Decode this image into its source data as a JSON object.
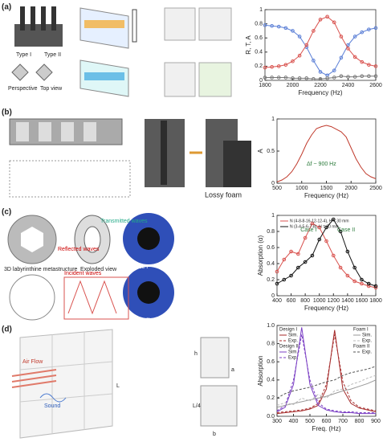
{
  "figure": {
    "panel_labels": [
      "(a)",
      "(b)",
      "(c)",
      "(d)"
    ],
    "a_texts": [
      "Type I",
      "Type II",
      "Perspective",
      "Top view"
    ],
    "b_texts": [
      "Lossy foam"
    ],
    "c_texts": [
      "3D labyrinthine metastructure",
      "Exploded view",
      "Incident waves",
      "Transmitted waves",
      "Reflected waves",
      "Case I",
      "Case II"
    ],
    "d_texts": [
      "Air Flow",
      "Sound",
      "L",
      "L/4",
      "h",
      "a",
      "b"
    ]
  },
  "chart_data": [
    {
      "type": "line",
      "xlabel": "Frequency (Hz)",
      "ylabel": "R, T, A",
      "x": [
        1800,
        1850,
        1900,
        1950,
        2000,
        2050,
        2100,
        2150,
        2200,
        2250,
        2300,
        2350,
        2400,
        2450,
        2500,
        2550,
        2600
      ],
      "series": [
        {
          "color": "#5b7fd6",
          "marker": true,
          "values": [
            0.78,
            0.77,
            0.76,
            0.74,
            0.7,
            0.62,
            0.47,
            0.28,
            0.12,
            0.07,
            0.14,
            0.32,
            0.5,
            0.62,
            0.68,
            0.72,
            0.74
          ]
        },
        {
          "color": "#d9534f",
          "marker": true,
          "values": [
            0.18,
            0.19,
            0.2,
            0.22,
            0.27,
            0.35,
            0.5,
            0.7,
            0.86,
            0.9,
            0.82,
            0.62,
            0.45,
            0.33,
            0.26,
            0.22,
            0.2
          ]
        },
        {
          "color": "#777777",
          "marker": true,
          "values": [
            0.04,
            0.04,
            0.04,
            0.04,
            0.03,
            0.03,
            0.03,
            0.02,
            0.02,
            0.03,
            0.04,
            0.06,
            0.05,
            0.05,
            0.06,
            0.06,
            0.06
          ]
        }
      ],
      "xlim": [
        1800,
        2600
      ],
      "ylim": [
        0,
        1
      ],
      "xticks": [
        1800,
        2000,
        2200,
        2400,
        2600
      ],
      "yticks": [
        0,
        0.2,
        0.4,
        0.6,
        0.8,
        1
      ],
      "annotations": []
    },
    {
      "type": "line",
      "xlabel": "Frequency (Hz)",
      "ylabel": "A",
      "x": [
        500,
        600,
        700,
        800,
        900,
        1000,
        1100,
        1200,
        1300,
        1400,
        1500,
        1600,
        1700,
        1800,
        1900,
        2000,
        2100,
        2200,
        2300,
        2400,
        2500
      ],
      "series": [
        {
          "color": "#c0392b",
          "marker": false,
          "values": [
            0.02,
            0.05,
            0.1,
            0.18,
            0.3,
            0.45,
            0.62,
            0.75,
            0.85,
            0.88,
            0.9,
            0.88,
            0.84,
            0.8,
            0.72,
            0.55,
            0.38,
            0.25,
            0.15,
            0.1,
            0.07
          ]
        }
      ],
      "xlim": [
        500,
        2500
      ],
      "ylim": [
        0,
        1
      ],
      "xticks": [
        500,
        1000,
        1500,
        2000,
        2500
      ],
      "yticks": [
        0,
        0.5,
        1
      ],
      "annotations": [
        "Δf ~ 900 Hz"
      ]
    },
    {
      "type": "line",
      "xlabel": "Frequency (Hz)",
      "ylabel": "Absorption (α)",
      "x": [
        400,
        500,
        600,
        700,
        800,
        900,
        1000,
        1100,
        1200,
        1300,
        1400,
        1500,
        1600,
        1700,
        1800
      ],
      "series": [
        {
          "name": "N (4-8-8-16-12-12-4), H = 30 mm",
          "color": "#d9534f",
          "marker": true,
          "values": [
            0.3,
            0.45,
            0.55,
            0.52,
            0.72,
            0.9,
            0.85,
            0.68,
            0.5,
            0.35,
            0.25,
            0.18,
            0.15,
            0.12,
            0.1
          ]
        },
        {
          "name": "N (3-4-5-6-7-8), H = 30 mm",
          "color": "#111111",
          "marker": true,
          "values": [
            0.15,
            0.2,
            0.25,
            0.35,
            0.42,
            0.5,
            0.7,
            0.85,
            0.95,
            0.8,
            0.55,
            0.35,
            0.2,
            0.15,
            0.12
          ]
        }
      ],
      "xlim": [
        400,
        1800
      ],
      "ylim": [
        0,
        1
      ],
      "xticks": [
        400,
        600,
        800,
        1000,
        1200,
        1400,
        1600,
        1800
      ],
      "yticks": [
        0,
        0.2,
        0.4,
        0.6,
        0.8,
        1
      ],
      "annotations": [
        "Case I",
        "Case II"
      ]
    },
    {
      "type": "line",
      "xlabel": "Freq. (Hz)",
      "ylabel": "Absorption",
      "x": [
        300,
        350,
        400,
        450,
        500,
        550,
        600,
        650,
        700,
        750,
        800,
        850,
        900
      ],
      "groups": [
        {
          "name": "Design I",
          "series": [
            {
              "name": "Sim.",
              "color": "#a52a2a",
              "dashed": false,
              "values": [
                0.03,
                0.04,
                0.05,
                0.06,
                0.08,
                0.12,
                0.3,
                0.95,
                0.3,
                0.14,
                0.09,
                0.07,
                0.05
              ]
            },
            {
              "name": "Exp.",
              "color": "#a52a2a",
              "dashed": true,
              "values": [
                0.04,
                0.05,
                0.06,
                0.07,
                0.09,
                0.14,
                0.35,
                0.9,
                0.38,
                0.17,
                0.1,
                0.08,
                0.06
              ]
            }
          ]
        },
        {
          "name": "Design II",
          "series": [
            {
              "name": "Sim.",
              "color": "#7b3fc4",
              "dashed": false,
              "values": [
                0.05,
                0.1,
                0.35,
                0.98,
                0.35,
                0.12,
                0.07,
                0.05,
                0.04,
                0.04,
                0.03,
                0.03,
                0.03
              ]
            },
            {
              "name": "Exp.",
              "color": "#7b3fc4",
              "dashed": true,
              "values": [
                0.06,
                0.12,
                0.4,
                0.9,
                0.4,
                0.15,
                0.08,
                0.06,
                0.05,
                0.05,
                0.04,
                0.04,
                0.04
              ]
            }
          ]
        },
        {
          "name": "Foam I",
          "series": [
            {
              "name": "Sim.",
              "color": "#999999",
              "dashed": false,
              "values": [
                0.1,
                0.12,
                0.14,
                0.16,
                0.18,
                0.2,
                0.22,
                0.25,
                0.28,
                0.3,
                0.33,
                0.36,
                0.4
              ]
            },
            {
              "name": "Exp.",
              "color": "#bbbbbb",
              "dashed": true,
              "values": [
                0.12,
                0.15,
                0.13,
                0.2,
                0.17,
                0.24,
                0.2,
                0.28,
                0.3,
                0.35,
                0.38,
                0.42,
                0.45
              ]
            }
          ]
        },
        {
          "name": "Foam II",
          "series": [
            {
              "name": "Exp.",
              "color": "#555555",
              "dashed": true,
              "values": [
                0.2,
                0.25,
                0.28,
                0.3,
                0.32,
                0.35,
                0.38,
                0.4,
                0.45,
                0.48,
                0.5,
                0.52,
                0.55
              ]
            }
          ]
        }
      ],
      "xlim": [
        300,
        900
      ],
      "ylim": [
        0,
        1
      ],
      "xticks": [
        300,
        400,
        500,
        600,
        700,
        800,
        900
      ],
      "yticks": [
        {
          "value": 0,
          "label": "0.0"
        },
        0.2,
        0.4,
        0.6,
        0.8,
        {
          "value": 1,
          "label": "1.0"
        }
      ],
      "annotations": []
    }
  ]
}
